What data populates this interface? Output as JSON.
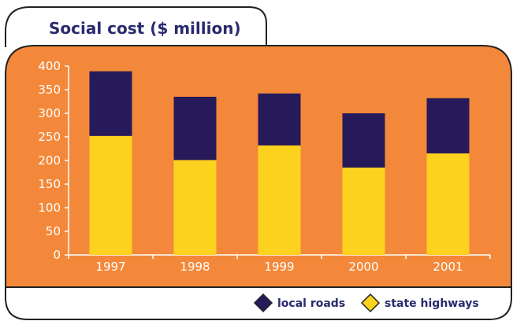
{
  "chart_data": {
    "type": "bar",
    "stacked": true,
    "title": "Social cost ($ million)",
    "categories": [
      "1997",
      "1998",
      "1999",
      "2000",
      "2001"
    ],
    "series": [
      {
        "name": "state highways",
        "color": "#fdd21f",
        "values": [
          252,
          201,
          232,
          185,
          215
        ]
      },
      {
        "name": "local roads",
        "color": "#261a5a",
        "values": [
          137,
          134,
          110,
          115,
          117
        ]
      }
    ],
    "yticks": [
      "0",
      "50",
      "100",
      "150",
      "200",
      "250",
      "300",
      "350",
      "400"
    ],
    "ylim": [
      0,
      400
    ],
    "legend": [
      {
        "label": "local roads",
        "color": "#261a5a"
      },
      {
        "label": "state highways",
        "color": "#fdd21f"
      }
    ],
    "legend_position": "bottom-right",
    "grid": false,
    "background_color": "#f4883a",
    "axis_color": "#ffffff",
    "title_color": "#2a2a6e"
  }
}
